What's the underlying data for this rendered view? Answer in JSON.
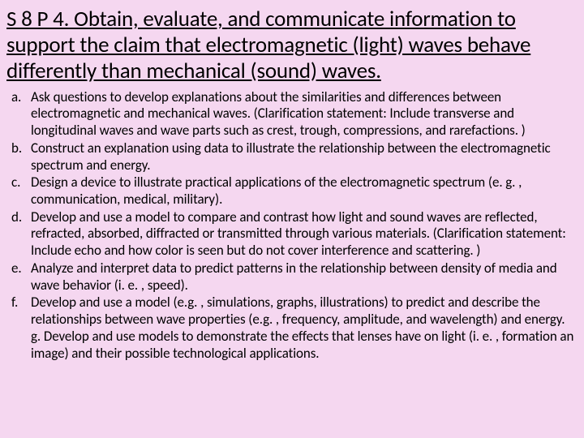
{
  "background_color": "#f5d7f0",
  "text_color": "#000000",
  "heading": {
    "text": "S 8 P 4. Obtain, evaluate, and communicate information to support the claim that electromagnetic (light) waves behave differently than mechanical (sound) waves.",
    "fontsize": 27,
    "underline": true
  },
  "list": {
    "fontsize": 17,
    "items": [
      {
        "marker": "a.",
        "text": "Ask questions to develop explanations about the similarities and differences between electromagnetic and mechanical waves. (Clarification statement: Include transverse and longitudinal waves and wave parts such as crest, trough, compressions, and rarefactions. )"
      },
      {
        "marker": "b.",
        "text": "Construct an explanation using data to illustrate the relationship between the electromagnetic spectrum and energy."
      },
      {
        "marker": "c.",
        "text": "Design a device to illustrate practical applications of the electromagnetic spectrum (e. g. , communication, medical, military)."
      },
      {
        "marker": "d.",
        "text": "Develop and use a model to compare and contrast how light and sound waves are reflected, refracted, absorbed, diffracted or transmitted through various materials. (Clarification statement: Include echo and how color is seen but do not cover interference and scattering. )"
      },
      {
        "marker": "e.",
        "text": "Analyze and interpret data to predict patterns in the relationship between density of media and wave behavior (i. e. , speed)."
      },
      {
        "marker": "f.",
        "text": "Develop and use a model (e.g. , simulations, graphs, illustrations) to predict and describe the relationships between wave properties (e.g. , frequency, amplitude, and wavelength) and energy. g. Develop and use models to demonstrate the effects that lenses have on light (i. e. , formation an image) and their possible technological applications."
      }
    ]
  }
}
